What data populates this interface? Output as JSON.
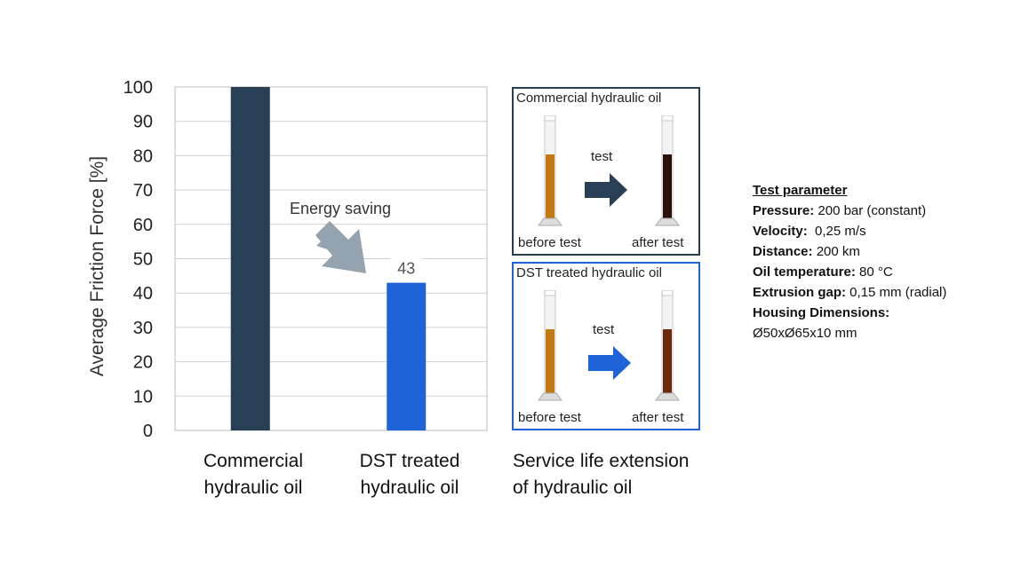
{
  "chart_data": {
    "type": "bar",
    "categories": [
      "Commercial hydraulic oil",
      "DST treated hydraulic oil"
    ],
    "category_lines": [
      [
        "Commercial",
        "hydraulic oil"
      ],
      [
        "DST treated",
        "hydraulic oil"
      ]
    ],
    "values": [
      100,
      43
    ],
    "bar_colors": [
      "#283f55",
      "#1e64d8"
    ],
    "data_labels": [
      null,
      "43"
    ],
    "ylabel": "Average Friction Force [%]",
    "ylim": [
      0,
      100
    ],
    "yticks": [
      0,
      10,
      20,
      30,
      40,
      50,
      60,
      70,
      80,
      90,
      100
    ],
    "grid": true,
    "annotation": "Energy saving"
  },
  "service_life": {
    "caption_lines": [
      "Service life extension",
      "of hydraulic oil"
    ],
    "panels": [
      {
        "title": "Commercial hydraulic oil",
        "arrow_label": "test",
        "before": "before test",
        "after": "after test",
        "border_color": "#2a3e4f",
        "arrow_color": "#283f55",
        "before_oil": "#c07a10",
        "after_oil": "#2a120a"
      },
      {
        "title": "DST treated hydraulic oil",
        "arrow_label": "test",
        "before": "before test",
        "after": "after test",
        "border_color": "#1e64d8",
        "arrow_color": "#1e64d8",
        "before_oil": "#c07a10",
        "after_oil": "#6a2c0c"
      }
    ]
  },
  "test_parameters": {
    "heading": "Test parameter",
    "items": [
      {
        "label": "Pressure:",
        "value": " 200 bar (constant)"
      },
      {
        "label": "Velocity:",
        "value": "  0,25 m/s"
      },
      {
        "label": "Distance:",
        "value": " 200 km"
      },
      {
        "label": "Oil temperature:",
        "value": " 80 °C"
      },
      {
        "label": "Extrusion gap:",
        "value": " 0,15 mm (radial)"
      },
      {
        "label": "Housing Dimensions:",
        "value": ""
      }
    ],
    "extra_line": "Ø50xØ65x10 mm"
  }
}
